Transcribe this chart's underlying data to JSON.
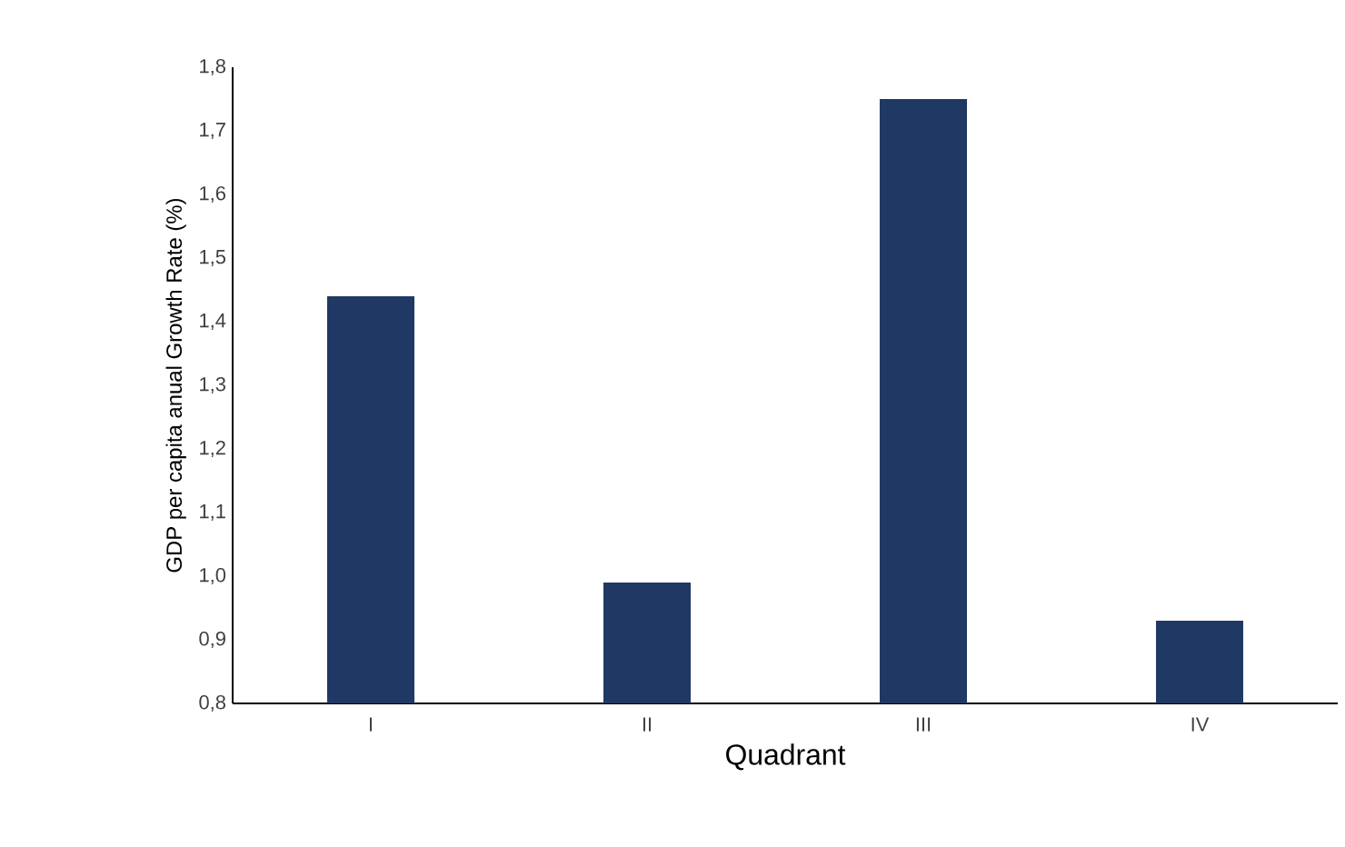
{
  "chart_data": {
    "type": "bar",
    "xlabel": "Quadrant",
    "ylabel": "GDP per capita anual Growth Rate (%)",
    "categories": [
      "I",
      "II",
      "III",
      "IV"
    ],
    "values": [
      1.44,
      0.99,
      1.75,
      0.93
    ],
    "color": "#203864",
    "ylim": [
      0.8,
      1.8
    ],
    "yticks": [
      {
        "value": 0.8,
        "label": "0,8"
      },
      {
        "value": 0.9,
        "label": "0,9"
      },
      {
        "value": 1.0,
        "label": "1,0"
      },
      {
        "value": 1.1,
        "label": "1,1"
      },
      {
        "value": 1.2,
        "label": "1,2"
      },
      {
        "value": 1.3,
        "label": "1,3"
      },
      {
        "value": 1.4,
        "label": "1,4"
      },
      {
        "value": 1.5,
        "label": "1,5"
      },
      {
        "value": 1.6,
        "label": "1,6"
      },
      {
        "value": 1.7,
        "label": "1,7"
      },
      {
        "value": 1.8,
        "label": "1,8"
      }
    ],
    "grid": false
  }
}
